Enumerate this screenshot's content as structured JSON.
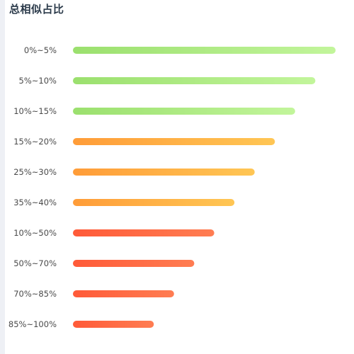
{
  "chart_data": {
    "type": "bar",
    "orientation": "horizontal",
    "title": "总相似占比",
    "categories": [
      "0%~5%",
      "5%~10%",
      "10%~15%",
      "15%~20%",
      "25%~30%",
      "35%~40%",
      "10%~50%",
      "50%~70%",
      "70%~85%",
      "85%~100%"
    ],
    "values": [
      100,
      92.3,
      84.6,
      76.9,
      69.2,
      61.5,
      53.8,
      46.2,
      38.5,
      30.8
    ],
    "xlim": [
      0,
      100
    ],
    "grid": false,
    "legend": "none",
    "bar_colors": [
      [
        "#9be06e",
        "#c2f59b"
      ],
      [
        "#9be06e",
        "#c2f59b"
      ],
      [
        "#9be06e",
        "#c2f59b"
      ],
      [
        "#ff9c38",
        "#ffc654"
      ],
      [
        "#ff9c38",
        "#ffc654"
      ],
      [
        "#ff9c38",
        "#ffc654"
      ],
      [
        "#ff5a38",
        "#ff7d52"
      ],
      [
        "#ff5a38",
        "#ff7d52"
      ],
      [
        "#ff5a38",
        "#ff7d52"
      ],
      [
        "#ff5a38",
        "#ff7d52"
      ]
    ]
  }
}
